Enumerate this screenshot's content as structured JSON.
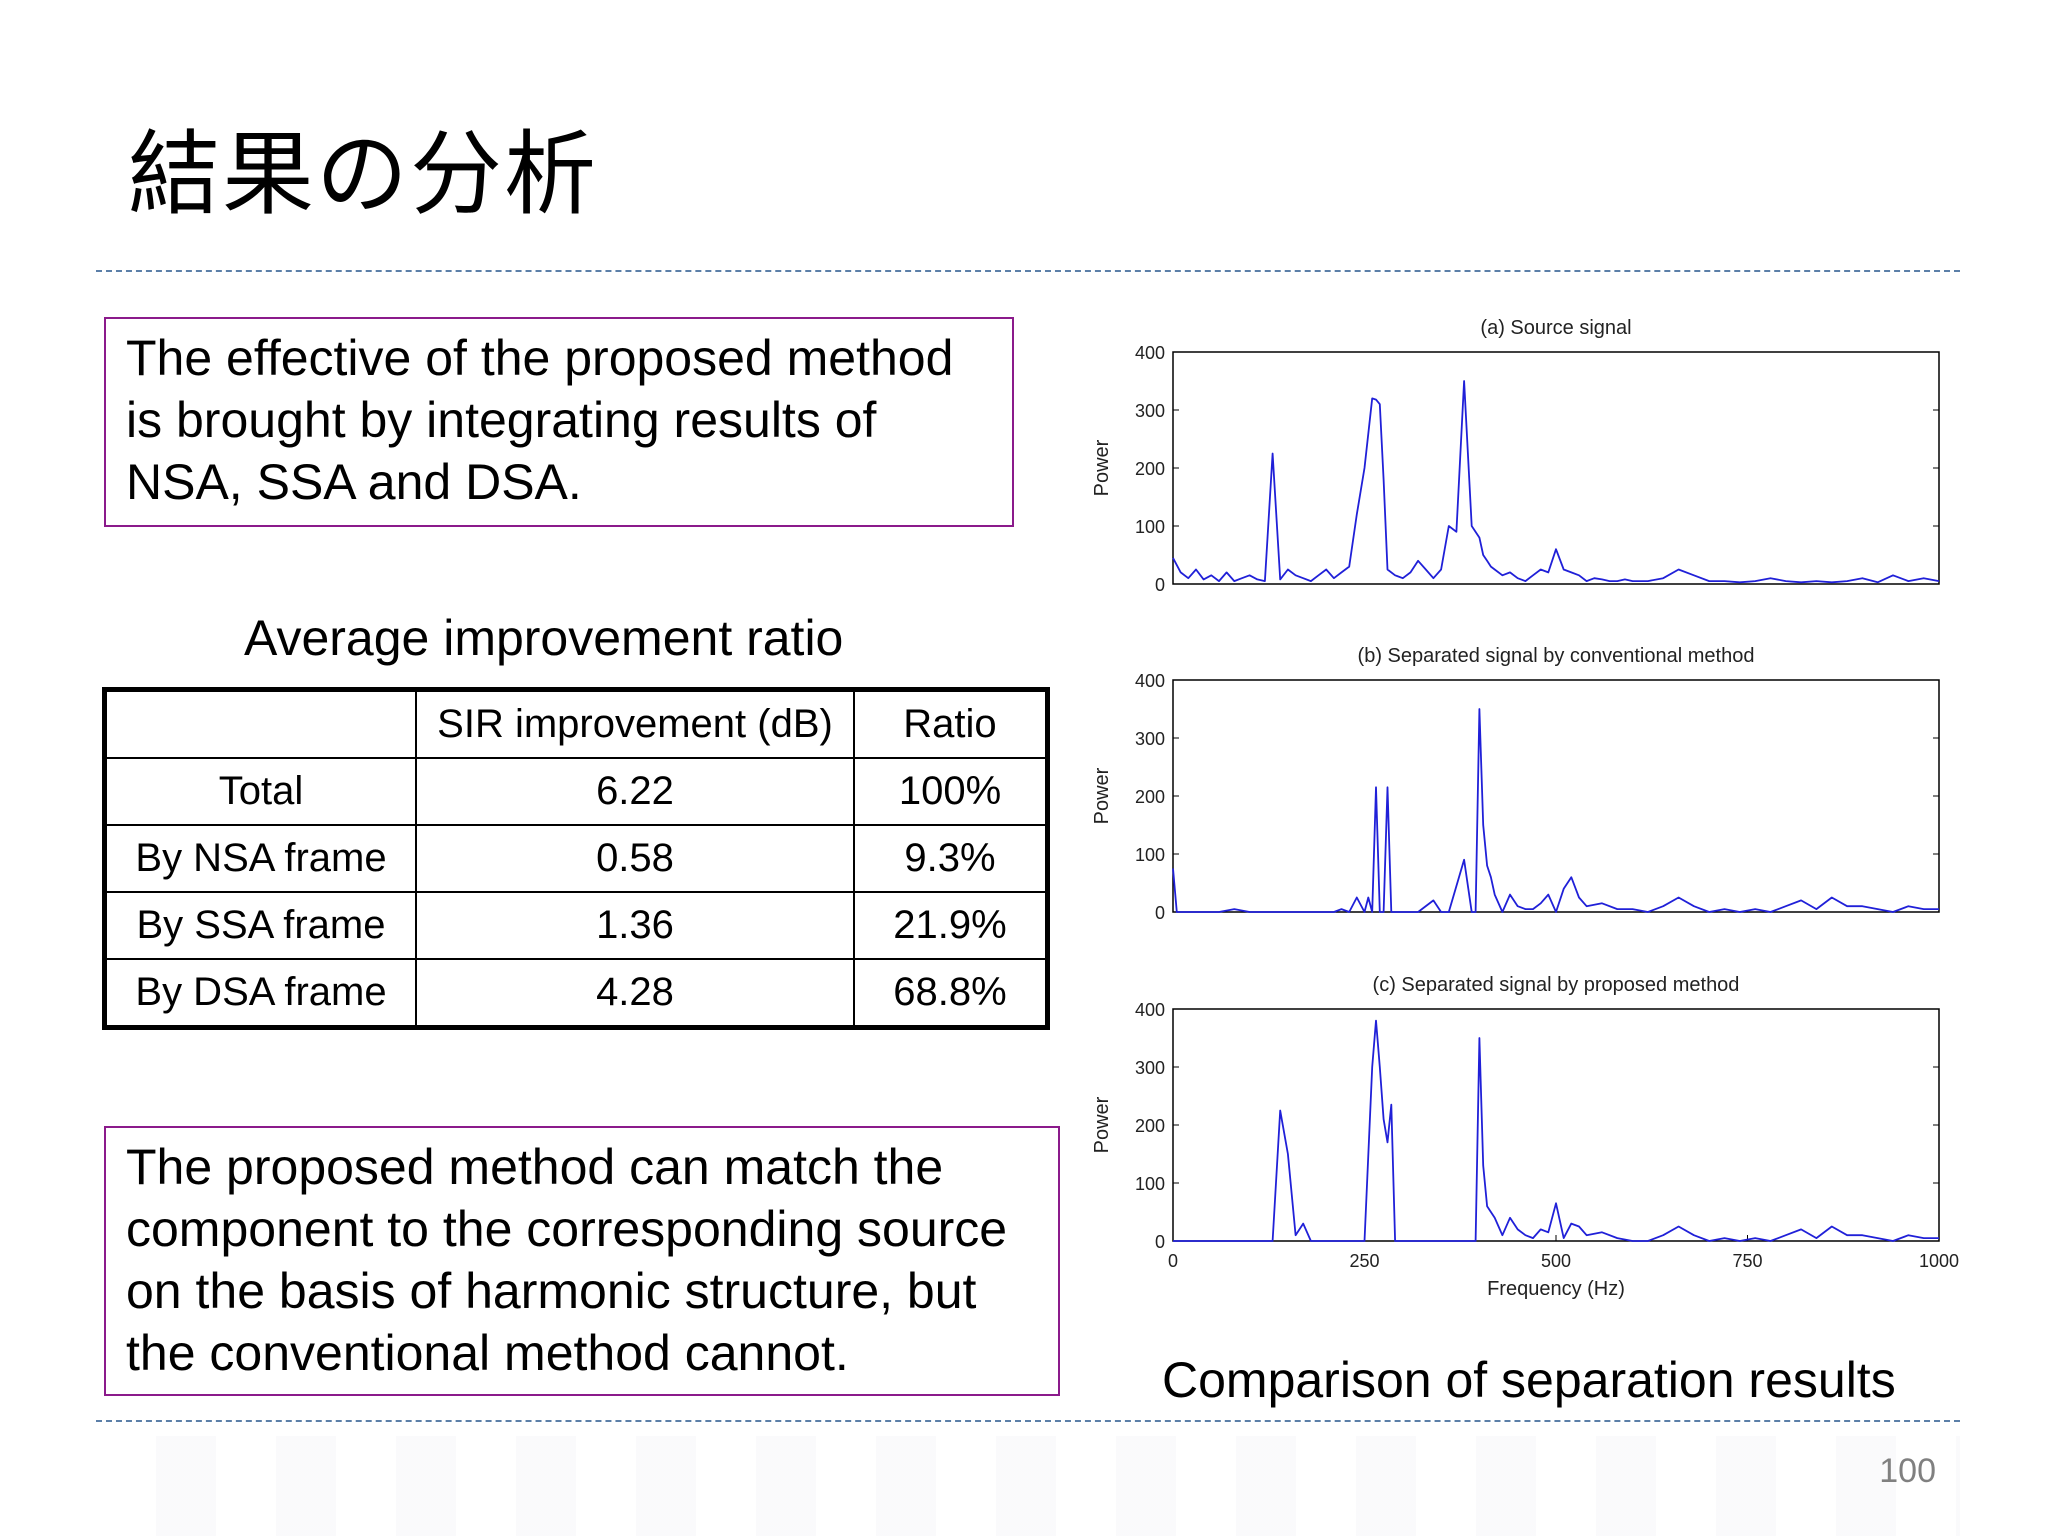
{
  "slide": {
    "title": "結果の分析",
    "page_number": "100"
  },
  "box_top": {
    "lines": [
      "The effective of the proposed method",
      "is brought by integrating results of",
      "NSA, SSA and DSA."
    ]
  },
  "table_title": "Average improvement ratio",
  "table": {
    "headers": [
      "",
      "SIR improvement (dB)",
      "Ratio"
    ],
    "rows": [
      [
        "Total",
        "6.22",
        "100%"
      ],
      [
        "By NSA frame",
        "0.58",
        "9.3%"
      ],
      [
        "By SSA frame",
        "1.36",
        "21.9%"
      ],
      [
        "By DSA frame",
        "4.28",
        "68.8%"
      ]
    ]
  },
  "box_bottom": {
    "lines": [
      "The proposed method can match the",
      "component to the corresponding source",
      "on the basis of harmonic structure, but",
      "the conventional method cannot."
    ]
  },
  "figure_caption": "Comparison of separation results",
  "colors": {
    "box_border": "#8b1a8b",
    "dash_line": "#5b7fa8",
    "series": "#2020d8"
  },
  "chart_data": [
    {
      "type": "line",
      "title": "(a) Source signal",
      "xlabel": "",
      "ylabel": "Power",
      "xlim": [
        0,
        1000
      ],
      "ylim": [
        0,
        400
      ],
      "yticks": [
        0,
        100,
        200,
        300,
        400
      ],
      "xticks": [],
      "series": [
        {
          "x": [
            0,
            10,
            20,
            30,
            40,
            50,
            60,
            70,
            80,
            90,
            100,
            110,
            120,
            130,
            140,
            150,
            160,
            170,
            180,
            190,
            200,
            210,
            220,
            230,
            240,
            250,
            260,
            265,
            270,
            275,
            280,
            290,
            300,
            310,
            320,
            330,
            340,
            350,
            360,
            370,
            380,
            390,
            400,
            405,
            410,
            415,
            420,
            430,
            440,
            450,
            460,
            470,
            480,
            490,
            500,
            510,
            520,
            530,
            540,
            550,
            560,
            570,
            580,
            590,
            600,
            620,
            640,
            660,
            680,
            700,
            720,
            740,
            760,
            780,
            800,
            820,
            840,
            860,
            880,
            900,
            920,
            940,
            960,
            980,
            1000
          ],
          "y": [
            45,
            20,
            10,
            25,
            8,
            15,
            5,
            20,
            5,
            10,
            15,
            8,
            5,
            225,
            8,
            25,
            15,
            10,
            5,
            15,
            25,
            10,
            20,
            30,
            120,
            200,
            320,
            318,
            310,
            180,
            25,
            15,
            10,
            20,
            40,
            25,
            10,
            25,
            100,
            90,
            350,
            100,
            80,
            50,
            40,
            30,
            25,
            15,
            20,
            10,
            5,
            15,
            25,
            20,
            60,
            25,
            20,
            15,
            5,
            10,
            8,
            5,
            5,
            8,
            5,
            5,
            10,
            25,
            15,
            5,
            5,
            3,
            5,
            10,
            5,
            3,
            5,
            3,
            5,
            10,
            3,
            15,
            5,
            10,
            5
          ]
        }
      ]
    },
    {
      "type": "line",
      "title": "(b) Separated signal by conventional method",
      "xlabel": "",
      "ylabel": "Power",
      "xlim": [
        0,
        1000
      ],
      "ylim": [
        0,
        400
      ],
      "yticks": [
        0,
        100,
        200,
        300,
        400
      ],
      "xticks": [],
      "series": [
        {
          "x": [
            0,
            5,
            10,
            20,
            30,
            40,
            60,
            80,
            100,
            120,
            140,
            160,
            180,
            200,
            210,
            220,
            230,
            240,
            250,
            255,
            260,
            265,
            270,
            275,
            280,
            285,
            290,
            300,
            320,
            340,
            350,
            360,
            380,
            390,
            395,
            400,
            405,
            410,
            415,
            420,
            430,
            440,
            450,
            460,
            470,
            480,
            490,
            500,
            510,
            520,
            530,
            540,
            560,
            580,
            600,
            620,
            640,
            660,
            680,
            700,
            720,
            740,
            760,
            780,
            800,
            820,
            840,
            860,
            880,
            900,
            920,
            940,
            960,
            980,
            1000
          ],
          "y": [
            75,
            0,
            0,
            0,
            0,
            0,
            0,
            5,
            0,
            0,
            0,
            0,
            0,
            0,
            0,
            5,
            0,
            25,
            0,
            25,
            0,
            215,
            0,
            0,
            215,
            0,
            0,
            0,
            0,
            20,
            0,
            0,
            90,
            0,
            0,
            350,
            150,
            80,
            60,
            30,
            0,
            30,
            10,
            5,
            5,
            15,
            30,
            0,
            40,
            60,
            25,
            10,
            15,
            5,
            5,
            0,
            10,
            25,
            10,
            0,
            5,
            0,
            5,
            0,
            10,
            20,
            5,
            25,
            10,
            10,
            5,
            0,
            10,
            5,
            5
          ]
        }
      ]
    },
    {
      "type": "line",
      "title": "(c) Separated signal by proposed method",
      "xlabel": "Frequency (Hz)",
      "ylabel": "Power",
      "xlim": [
        0,
        1000
      ],
      "ylim": [
        0,
        400
      ],
      "yticks": [
        0,
        100,
        200,
        300,
        400
      ],
      "xticks": [
        0,
        250,
        500,
        750,
        1000
      ],
      "series": [
        {
          "x": [
            0,
            20,
            40,
            60,
            80,
            100,
            120,
            130,
            140,
            150,
            160,
            170,
            180,
            200,
            220,
            240,
            250,
            260,
            265,
            270,
            275,
            280,
            285,
            290,
            300,
            320,
            340,
            360,
            380,
            390,
            395,
            400,
            405,
            410,
            420,
            430,
            440,
            450,
            460,
            470,
            480,
            490,
            500,
            510,
            520,
            530,
            540,
            560,
            580,
            600,
            620,
            640,
            660,
            680,
            700,
            720,
            740,
            760,
            780,
            800,
            820,
            840,
            860,
            880,
            900,
            920,
            940,
            960,
            980,
            1000
          ],
          "y": [
            0,
            0,
            0,
            0,
            0,
            0,
            0,
            0,
            225,
            150,
            10,
            30,
            0,
            0,
            0,
            0,
            0,
            300,
            380,
            300,
            210,
            170,
            235,
            0,
            0,
            0,
            0,
            0,
            0,
            0,
            0,
            350,
            130,
            60,
            40,
            10,
            40,
            20,
            10,
            5,
            20,
            15,
            65,
            5,
            30,
            25,
            10,
            15,
            5,
            0,
            0,
            10,
            25,
            10,
            0,
            5,
            0,
            5,
            0,
            10,
            20,
            5,
            25,
            10,
            10,
            5,
            0,
            10,
            5,
            5
          ]
        }
      ]
    }
  ]
}
